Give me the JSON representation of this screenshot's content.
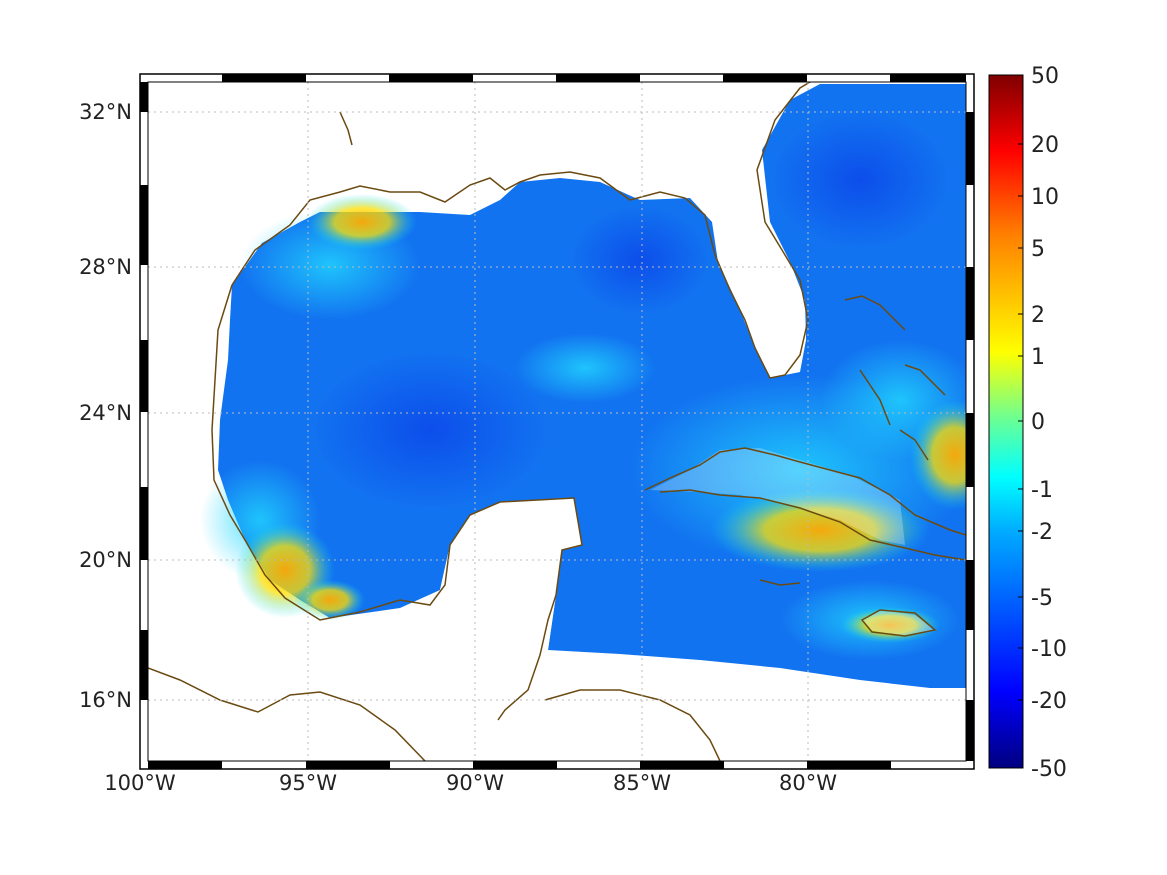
{
  "map": {
    "region": "Gulf of Mexico and Caribbean",
    "lon_range": [
      -100,
      -75.5
    ],
    "lat_range": [
      14.2,
      33
    ],
    "grid": true,
    "coastline_color": "#6b4a12",
    "frame_style": "black-white alternating border"
  },
  "axes": {
    "x_ticks": [
      "100°W",
      "95°W",
      "90°W",
      "85°W",
      "80°W"
    ],
    "y_ticks": [
      "32°N",
      "28°N",
      "24°N",
      "20°N",
      "16°N"
    ]
  },
  "colorbar": {
    "orientation": "vertical",
    "placement": "right",
    "colormap": "jet",
    "tick_labels": [
      "50",
      "20",
      "10",
      "5",
      "2",
      "1",
      "0",
      "-1",
      "-2",
      "-5",
      "-10",
      "-20",
      "-50"
    ]
  },
  "field_highlights": [
    {
      "area": "Texas/Louisiana shelf",
      "level": "positive (~2-5)"
    },
    {
      "area": "Bay of Campeche coast",
      "level": "positive (~5)"
    },
    {
      "area": "South of Cuba",
      "level": "positive (~2-5)"
    },
    {
      "area": "East of Bahamas",
      "level": "positive (~2)"
    },
    {
      "area": "Open Gulf interior",
      "level": "negative (~-5 to -10)"
    }
  ]
}
